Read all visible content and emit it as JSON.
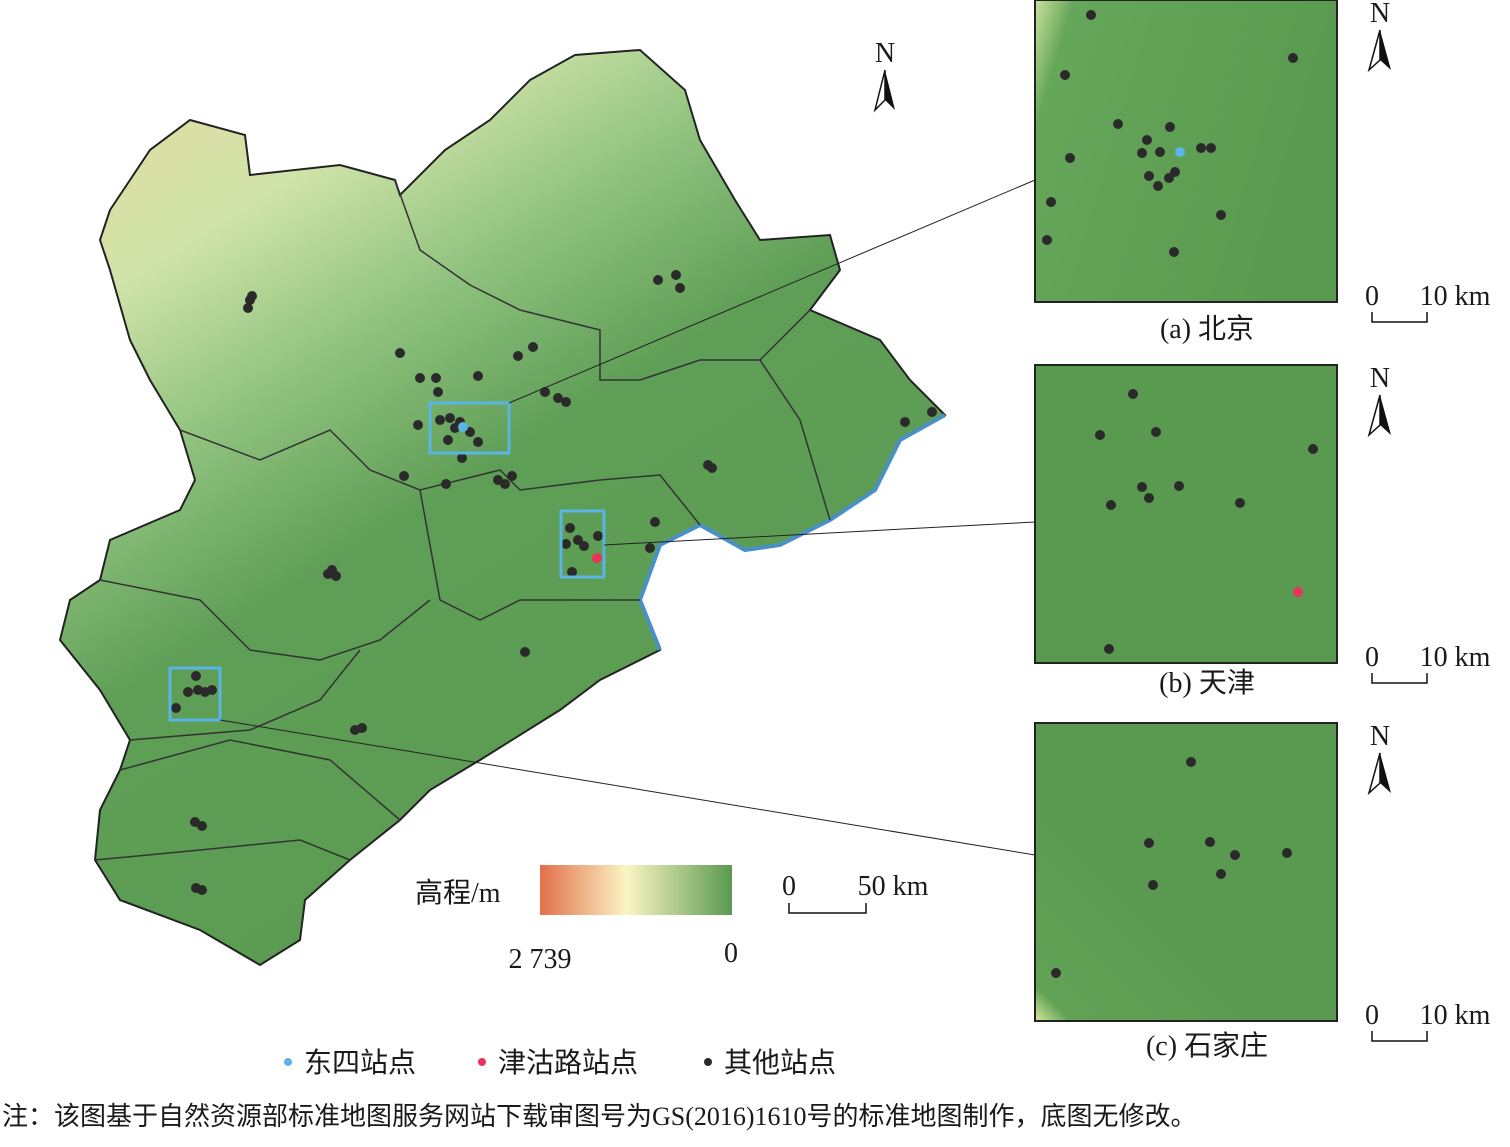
{
  "main_map": {
    "north": "N",
    "scale": {
      "start": "0",
      "end": "50 km"
    },
    "legend_title": "高程/m",
    "elevation_high": "2 739",
    "elevation_low": "0"
  },
  "insets": [
    {
      "caption": "(a) 北京",
      "north": "N",
      "scale": {
        "start": "0",
        "end": "10 km"
      }
    },
    {
      "caption": "(b) 天津",
      "north": "N",
      "scale": {
        "start": "0",
        "end": "10 km"
      }
    },
    {
      "caption": "(c) 石家庄",
      "north": "N",
      "scale": {
        "start": "0",
        "end": "10 km"
      }
    }
  ],
  "legend": [
    {
      "label": "东四站点",
      "color": "#5ab4e5"
    },
    {
      "label": "津沽路站点",
      "color": "#e8345a"
    },
    {
      "label": "其他站点",
      "color": "#2a2a2a"
    }
  ],
  "note": "注：该图基于自然资源部标准地图服务网站下载审图号为GS(2016)1610号的标准地图制作，底图无修改。"
}
